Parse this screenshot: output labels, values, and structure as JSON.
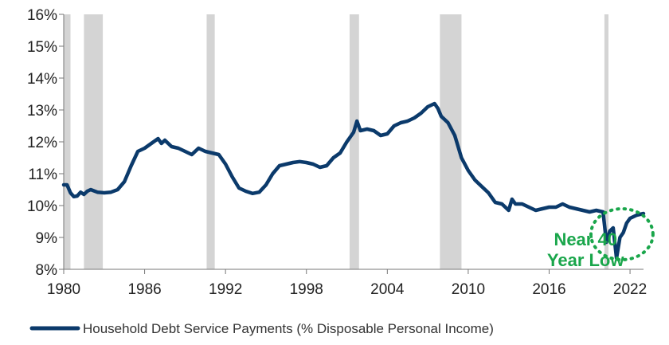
{
  "chart_data": {
    "type": "line",
    "title": "",
    "xlabel": "",
    "ylabel": "",
    "xlim": [
      1980,
      2023
    ],
    "ylim": [
      8,
      16
    ],
    "x_ticks": [
      1980,
      1986,
      1992,
      1998,
      2004,
      2010,
      2016,
      2022
    ],
    "x_tick_labels": [
      "1980",
      "1986",
      "1992",
      "1998",
      "2004",
      "2010",
      "2016",
      "2022"
    ],
    "y_ticks": [
      8,
      9,
      10,
      11,
      12,
      13,
      14,
      15,
      16
    ],
    "y_tick_labels": [
      "8%",
      "9%",
      "10%",
      "11%",
      "12%",
      "13%",
      "14%",
      "15%",
      "16%"
    ],
    "grid": false,
    "legend_position": "bottom",
    "colors": {
      "line": "#0b3a6b",
      "recession": "#d4d4d4",
      "annotation": "#1aa64b"
    },
    "recession_periods": [
      [
        1980.0,
        1980.5
      ],
      [
        1981.5,
        1982.9
      ],
      [
        1990.6,
        1991.2
      ],
      [
        2001.2,
        2001.9
      ],
      [
        2007.9,
        2009.5
      ],
      [
        2020.1,
        2020.4
      ]
    ],
    "series": [
      {
        "name": "Household Debt Service Payments (% Disposable Personal Income)",
        "x": [
          1980.0,
          1980.25,
          1980.5,
          1980.75,
          1981.0,
          1981.25,
          1981.5,
          1981.75,
          1982.0,
          1982.5,
          1983.0,
          1983.5,
          1984.0,
          1984.5,
          1985.0,
          1985.5,
          1986.0,
          1986.5,
          1987.0,
          1987.25,
          1987.5,
          1987.75,
          1988.0,
          1988.5,
          1989.0,
          1989.5,
          1990.0,
          1990.5,
          1991.0,
          1991.5,
          1992.0,
          1992.5,
          1993.0,
          1993.5,
          1994.0,
          1994.5,
          1995.0,
          1995.5,
          1996.0,
          1996.5,
          1997.0,
          1997.5,
          1998.0,
          1998.5,
          1999.0,
          1999.5,
          2000.0,
          2000.5,
          2001.0,
          2001.5,
          2001.75,
          2002.0,
          2002.5,
          2003.0,
          2003.5,
          2004.0,
          2004.5,
          2005.0,
          2005.5,
          2006.0,
          2006.5,
          2007.0,
          2007.5,
          2007.75,
          2008.0,
          2008.5,
          2009.0,
          2009.5,
          2010.0,
          2010.5,
          2011.0,
          2011.5,
          2012.0,
          2012.5,
          2013.0,
          2013.25,
          2013.5,
          2014.0,
          2014.5,
          2015.0,
          2015.5,
          2016.0,
          2016.5,
          2017.0,
          2017.5,
          2018.0,
          2018.5,
          2019.0,
          2019.5,
          2020.0,
          2020.25,
          2020.5,
          2020.75,
          2021.0,
          2021.25,
          2021.5,
          2021.75,
          2022.0,
          2022.5,
          2023.0
        ],
        "values": [
          10.65,
          10.65,
          10.4,
          10.28,
          10.3,
          10.42,
          10.35,
          10.45,
          10.5,
          10.42,
          10.4,
          10.42,
          10.5,
          10.75,
          11.25,
          11.7,
          11.8,
          11.95,
          12.1,
          11.95,
          12.05,
          11.95,
          11.85,
          11.8,
          11.7,
          11.6,
          11.8,
          11.7,
          11.65,
          11.6,
          11.3,
          10.9,
          10.55,
          10.45,
          10.38,
          10.42,
          10.65,
          11.0,
          11.25,
          11.3,
          11.35,
          11.38,
          11.35,
          11.3,
          11.2,
          11.25,
          11.5,
          11.65,
          12.0,
          12.3,
          12.65,
          12.35,
          12.4,
          12.35,
          12.2,
          12.25,
          12.5,
          12.6,
          12.65,
          12.75,
          12.9,
          13.1,
          13.2,
          13.05,
          12.8,
          12.6,
          12.2,
          11.5,
          11.1,
          10.8,
          10.6,
          10.4,
          10.1,
          10.05,
          9.85,
          10.2,
          10.05,
          10.05,
          9.95,
          9.85,
          9.9,
          9.95,
          9.95,
          10.05,
          9.95,
          9.9,
          9.85,
          9.8,
          9.85,
          9.8,
          8.85,
          9.2,
          9.3,
          8.35,
          9.0,
          9.15,
          9.45,
          9.6,
          9.7,
          9.75
        ]
      }
    ],
    "annotations": [
      {
        "id": "near-40-line1",
        "text": "Near 40",
        "x": 2018.7,
        "y": 8.75
      },
      {
        "id": "near-40-line2",
        "text": "Year Low",
        "x": 2018.7,
        "y": 8.1
      }
    ],
    "highlight_circle": {
      "x": 2021.4,
      "y": 9.1,
      "rx_years": 2.3,
      "ry_pct": 0.8
    }
  }
}
